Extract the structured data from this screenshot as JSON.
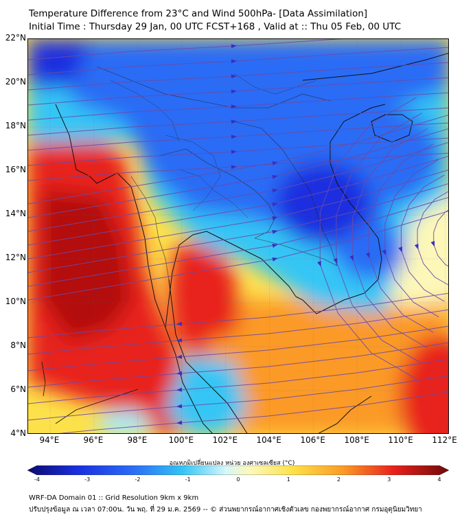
{
  "title_line1": "Temperature Difference from 23°C and Wind 500hPa- [Data Assimilation]",
  "title_line2": "Initial Time : Thursday 29 Jan, 00 UTC FCST+168 , Valid at ::  Thu 05 Feb, 00 UTC",
  "map": {
    "lat_labels": [
      "22°N",
      "20°N",
      "18°N",
      "16°N",
      "14°N",
      "12°N",
      "10°N",
      "8°N",
      "6°N",
      "4°N"
    ],
    "lon_labels": [
      "94°E",
      "96°E",
      "98°E",
      "100°E",
      "102°E",
      "104°E",
      "106°E",
      "108°E",
      "110°E",
      "112°E"
    ],
    "lat_range": [
      4,
      22
    ],
    "lon_range": [
      93,
      112.2
    ],
    "colors": {
      "deep_blue": "#1a2fe0",
      "blue": "#2b6cf5",
      "cyan": "#34c6f5",
      "light_cyan": "#a8ecf7",
      "pale_yellow": "#fdf8b8",
      "yellow": "#fde14a",
      "orange": "#fb9a25",
      "red": "#e8201c",
      "dark_red": "#b3100e",
      "streamline": "#6b4aa8",
      "arrow": "#3a2fc0"
    }
  },
  "colorbar": {
    "title": "อุณหภูมิเปลี่ยนแปลง หน่วย องศาเซลเซียส (°C)",
    "ticks": [
      "-4",
      "-3",
      "-2",
      "-1",
      "0",
      "1",
      "2",
      "3",
      "4"
    ],
    "range": [
      -4,
      4
    ]
  },
  "footer_line1": "WRF-DA Domain 01 :: Grid Resolution 9km x 9km",
  "footer_line2": "ปรับปรุงข้อมูล ณ เวลา 07:00น. วัน พฤ. ที่ 29 ม.ค. 2569 -- © ส่วนพยากรณ์อากาศเชิงตัวเลข กองพยากรณ์อากาศ กรมอุตุนิยมวิทยา"
}
